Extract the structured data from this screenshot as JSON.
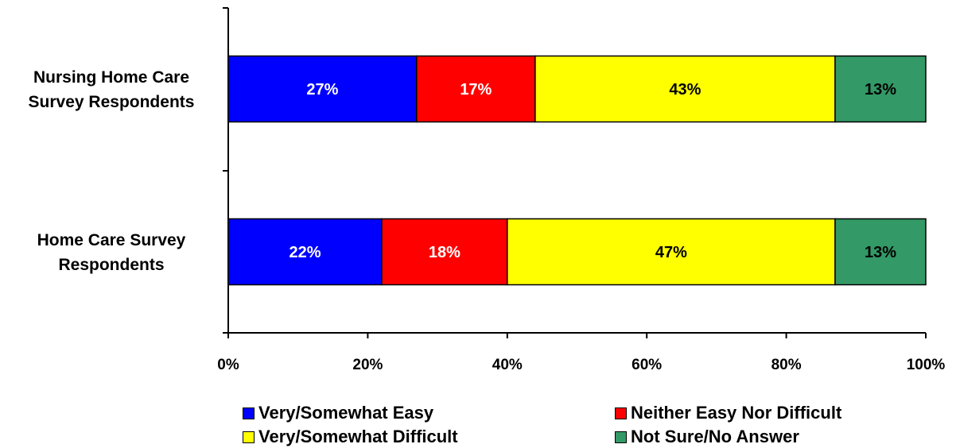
{
  "chart_data": {
    "type": "bar",
    "orientation": "horizontal",
    "stacked": true,
    "categories": [
      "Nursing Home Care Survey Respondents",
      "Home Care Survey Respondents"
    ],
    "category_label_lines": [
      [
        "Nursing Home Care",
        "Survey Respondents"
      ],
      [
        "Home Care Survey",
        "Respondents"
      ]
    ],
    "series": [
      {
        "name": "Very/Somewhat Easy",
        "color": "#0000FF",
        "label_color": "#FFFFFF",
        "values": [
          27,
          22
        ],
        "labels": [
          "27%",
          "22%"
        ]
      },
      {
        "name": "Neither Easy Nor Difficult",
        "color": "#FF0000",
        "label_color": "#FFFFFF",
        "values": [
          17,
          18
        ],
        "labels": [
          "17%",
          "18%"
        ]
      },
      {
        "name": "Very/Somewhat Difficult",
        "color": "#FFFF00",
        "label_color": "#000000",
        "values": [
          43,
          47
        ],
        "labels": [
          "43%",
          "47%"
        ]
      },
      {
        "name": "Not Sure/No Answer",
        "color": "#339966",
        "label_color": "#000000",
        "values": [
          13,
          13
        ],
        "labels": [
          "13%",
          "13%"
        ]
      }
    ],
    "xlim": [
      0,
      100
    ],
    "xticks": [
      0,
      20,
      40,
      60,
      80,
      100
    ],
    "xtick_labels": [
      "0%",
      "20%",
      "40%",
      "60%",
      "80%",
      "100%"
    ],
    "grid": false,
    "legend_position": "bottom"
  }
}
